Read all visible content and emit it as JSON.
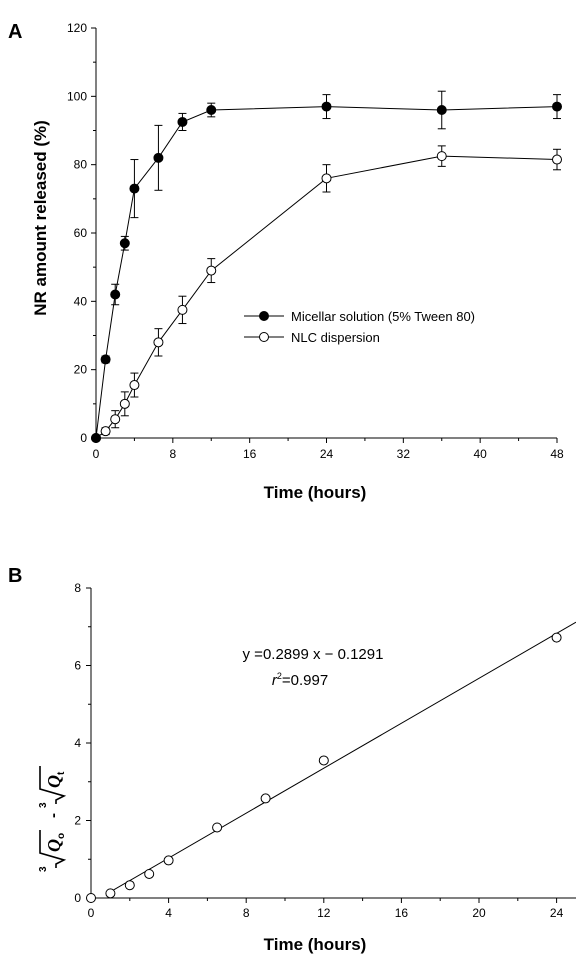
{
  "chart_data": [
    {
      "panel_label": "A",
      "type": "line",
      "xlabel": "Time (hours)",
      "ylabel": "NR amount released (%)",
      "xlim": [
        0,
        48
      ],
      "ylim": [
        0,
        120
      ],
      "xticks": [
        "0",
        "8",
        "16",
        "24",
        "32",
        "40",
        "48"
      ],
      "yticks": [
        "0",
        "20",
        "40",
        "60",
        "80",
        "100",
        "120"
      ],
      "legend_position": "center-right",
      "grid": false,
      "series": [
        {
          "name": "Micellar solution (5% Tween 80)",
          "marker": "filled-circle",
          "x": [
            0,
            1,
            2,
            3,
            4,
            6.5,
            9,
            12,
            24,
            36,
            48
          ],
          "y": [
            0,
            23,
            42,
            57,
            73,
            82,
            92.5,
            96,
            97,
            96,
            97
          ],
          "err": [
            0,
            1,
            3,
            2,
            8.5,
            9.5,
            2.5,
            2,
            3.5,
            5.5,
            3.5
          ]
        },
        {
          "name": "NLC dispersion",
          "marker": "open-circle",
          "x": [
            0,
            1,
            2,
            3,
            4,
            6.5,
            9,
            12,
            24,
            36,
            48
          ],
          "y": [
            0,
            2,
            5.5,
            10,
            15.5,
            28,
            37.5,
            49,
            76,
            82.5,
            81.5
          ],
          "err": [
            0,
            1,
            2.5,
            3.5,
            3.5,
            4,
            4,
            3.5,
            4,
            3,
            3
          ]
        }
      ]
    },
    {
      "panel_label": "B",
      "type": "scatter",
      "xlabel": "Time (hours)",
      "ylabel_parts": {
        "cube": "3",
        "q0": "Q",
        "q0_sub": "o",
        "minus": "-",
        "qt": "Q",
        "qt_sub": "t"
      },
      "xlim": [
        0,
        25
      ],
      "ylim": [
        0,
        8
      ],
      "xticks": [
        "0",
        "4",
        "8",
        "12",
        "16",
        "20",
        "24"
      ],
      "yticks": [
        "0",
        "2",
        "4",
        "6",
        "8"
      ],
      "grid": false,
      "points": {
        "x": [
          0,
          1,
          2,
          3,
          4,
          6.5,
          9,
          12,
          24
        ],
        "y": [
          0,
          0.12,
          0.33,
          0.62,
          0.97,
          1.82,
          2.57,
          3.55,
          6.72
        ]
      },
      "fit": {
        "slope": 0.2899,
        "intercept": -0.1291,
        "x_range": [
          1,
          25
        ]
      },
      "annotation_eq": "y =0.2899 x − 0.1291",
      "annotation_r2_symbol": "r",
      "annotation_r2_exp": "2",
      "annotation_r2_value": "=0.997"
    }
  ]
}
